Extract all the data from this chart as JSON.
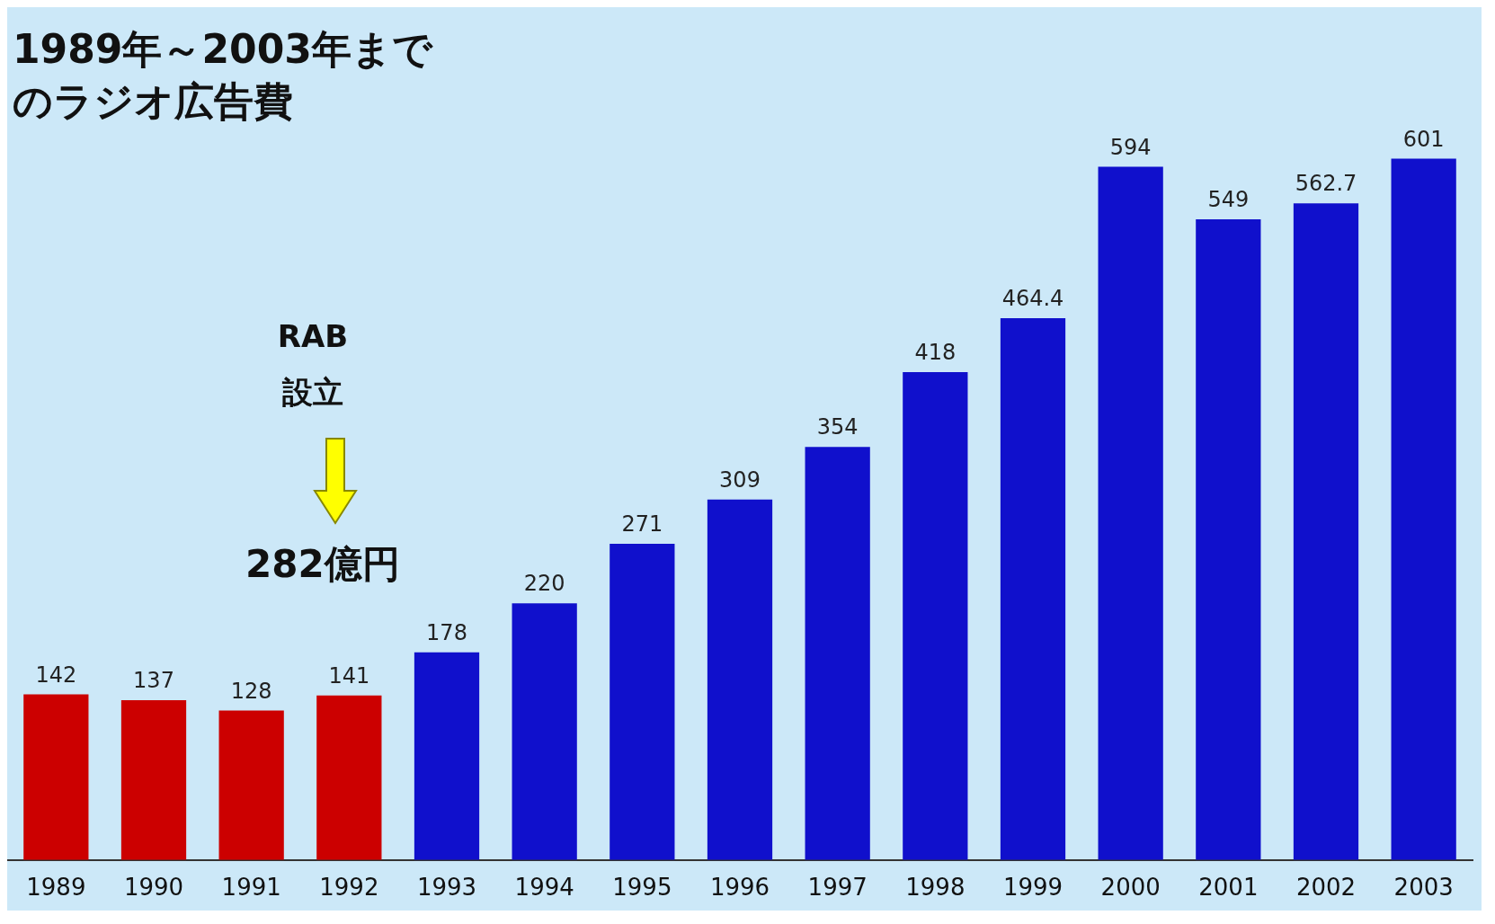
{
  "chart_data": {
    "type": "bar",
    "title": "1989年～2003年までのラジオ広告費",
    "categories": [
      "1989",
      "1990",
      "1991",
      "1992",
      "1993",
      "1994",
      "1995",
      "1996",
      "1997",
      "1998",
      "1999",
      "2000",
      "2001",
      "2002",
      "2003"
    ],
    "values": [
      142,
      137,
      128,
      141,
      178,
      220,
      271,
      309,
      354,
      418,
      464.4,
      594,
      549,
      562.7,
      601
    ],
    "colors": [
      "#cc0000",
      "#cc0000",
      "#cc0000",
      "#cc0000",
      "#1010cc",
      "#1010cc",
      "#1010cc",
      "#1010cc",
      "#1010cc",
      "#1010cc",
      "#1010cc",
      "#1010cc",
      "#1010cc",
      "#1010cc",
      "#1010cc"
    ],
    "data_labels": true,
    "tick_labels": "x",
    "grid": false,
    "legend": false,
    "annotations": [
      "RAB設立",
      "282億円"
    ]
  }
}
